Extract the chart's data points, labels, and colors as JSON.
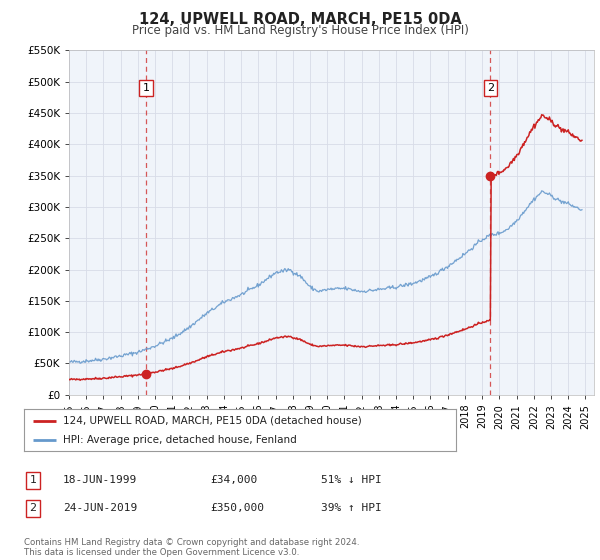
{
  "title": "124, UPWELL ROAD, MARCH, PE15 0DA",
  "subtitle": "Price paid vs. HM Land Registry's House Price Index (HPI)",
  "ylim": [
    0,
    550000
  ],
  "xlim_start": 1995.0,
  "xlim_end": 2025.5,
  "background_color": "#ffffff",
  "plot_bg_color": "#f0f4fa",
  "grid_color": "#d8dce8",
  "hpi_color": "#6699cc",
  "price_color": "#cc2222",
  "marker1_date": 1999.47,
  "marker1_price": 34000,
  "marker2_date": 2019.48,
  "marker2_price": 350000,
  "legend_label1": "124, UPWELL ROAD, MARCH, PE15 0DA (detached house)",
  "legend_label2": "HPI: Average price, detached house, Fenland",
  "table_row1_label": "1",
  "table_row1_date": "18-JUN-1999",
  "table_row1_price": "£34,000",
  "table_row1_hpi": "51% ↓ HPI",
  "table_row2_label": "2",
  "table_row2_date": "24-JUN-2019",
  "table_row2_price": "£350,000",
  "table_row2_hpi": "39% ↑ HPI",
  "footnote": "Contains HM Land Registry data © Crown copyright and database right 2024.\nThis data is licensed under the Open Government Licence v3.0.",
  "ytick_labels": [
    "£0",
    "£50K",
    "£100K",
    "£150K",
    "£200K",
    "£250K",
    "£300K",
    "£350K",
    "£400K",
    "£450K",
    "£500K",
    "£550K"
  ],
  "ytick_values": [
    0,
    50000,
    100000,
    150000,
    200000,
    250000,
    300000,
    350000,
    400000,
    450000,
    500000,
    550000
  ]
}
